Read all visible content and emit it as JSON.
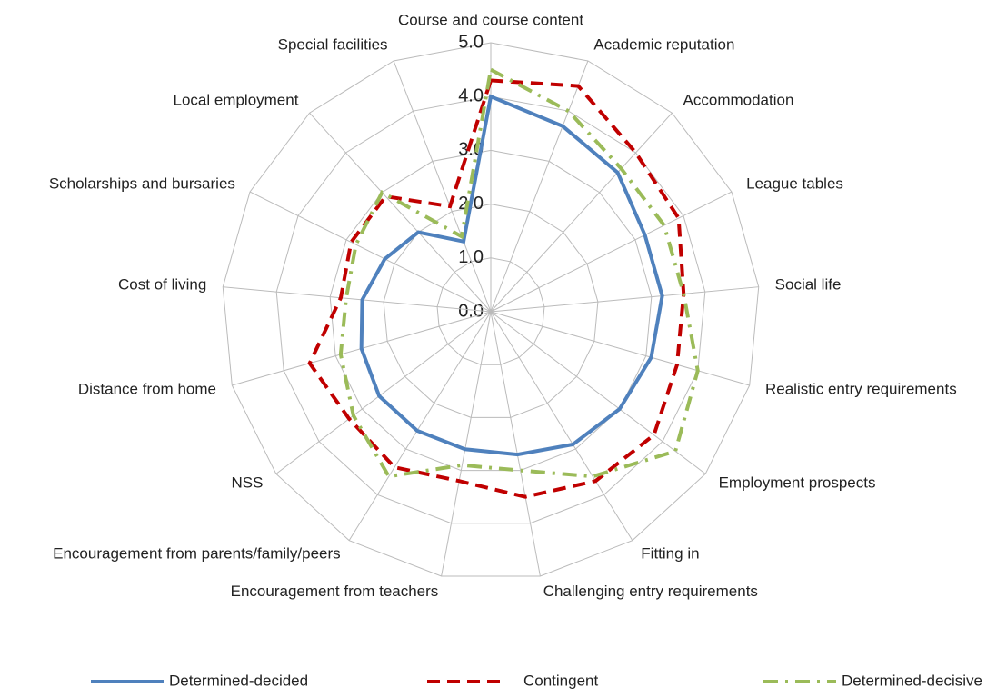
{
  "chart_data": {
    "type": "radar",
    "categories": [
      "Course and  course content",
      "Academic reputation",
      "Accommodation",
      "League tables",
      "Social life",
      "Realistic entry requirements",
      "Employment prospects",
      "Fitting in",
      "Challenging entry requirements",
      "Encouragement from teachers",
      "Encouragement from parents/family/peers",
      "NSS",
      "Distance from home",
      "Cost of living",
      "Scholarships and bursaries",
      "Local employment",
      "Special facilities"
    ],
    "series": [
      {
        "name": "Determined-decided",
        "color": "#4f81bd",
        "dash": "solid",
        "values": [
          4.0,
          3.7,
          3.5,
          3.2,
          3.2,
          3.1,
          3.0,
          2.9,
          2.7,
          2.6,
          2.6,
          2.6,
          2.5,
          2.4,
          2.2,
          2.0,
          1.4
        ]
      },
      {
        "name": "Contingent",
        "color": "#c00000",
        "dash": "dash",
        "values": [
          4.3,
          4.5,
          4.0,
          3.9,
          3.6,
          3.6,
          3.8,
          3.7,
          3.5,
          3.2,
          3.4,
          3.3,
          3.5,
          2.8,
          2.9,
          2.9,
          2.1
        ]
      },
      {
        "name": "Determined-decisive",
        "color": "#9bbb59",
        "dash": "dashdot",
        "values": [
          4.5,
          4.0,
          3.6,
          3.6,
          3.6,
          4.0,
          4.3,
          3.6,
          3.0,
          2.9,
          3.6,
          3.2,
          2.9,
          2.7,
          2.8,
          3.0,
          1.5
        ]
      }
    ],
    "ylim": [
      0,
      5
    ],
    "yticks": [
      {
        "value": 0,
        "label": "0.0"
      },
      {
        "value": 1,
        "label": "1.0"
      },
      {
        "value": 2,
        "label": "2.0"
      },
      {
        "value": 3,
        "label": "3.0"
      },
      {
        "value": 4,
        "label": "4.0"
      },
      {
        "value": 5,
        "label": "5.0"
      }
    ],
    "grid": true,
    "legend": "bottom"
  }
}
